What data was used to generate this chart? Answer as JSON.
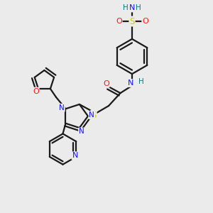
{
  "bg_color": "#ebebeb",
  "atom_colors": {
    "C": "#1a1a1a",
    "N": "#1414ff",
    "O": "#ff1414",
    "S": "#cccc00",
    "H": "#008080"
  },
  "bond_color": "#1a1a1a",
  "bond_width": 1.6,
  "figsize": [
    3.0,
    3.0
  ],
  "dpi": 100
}
